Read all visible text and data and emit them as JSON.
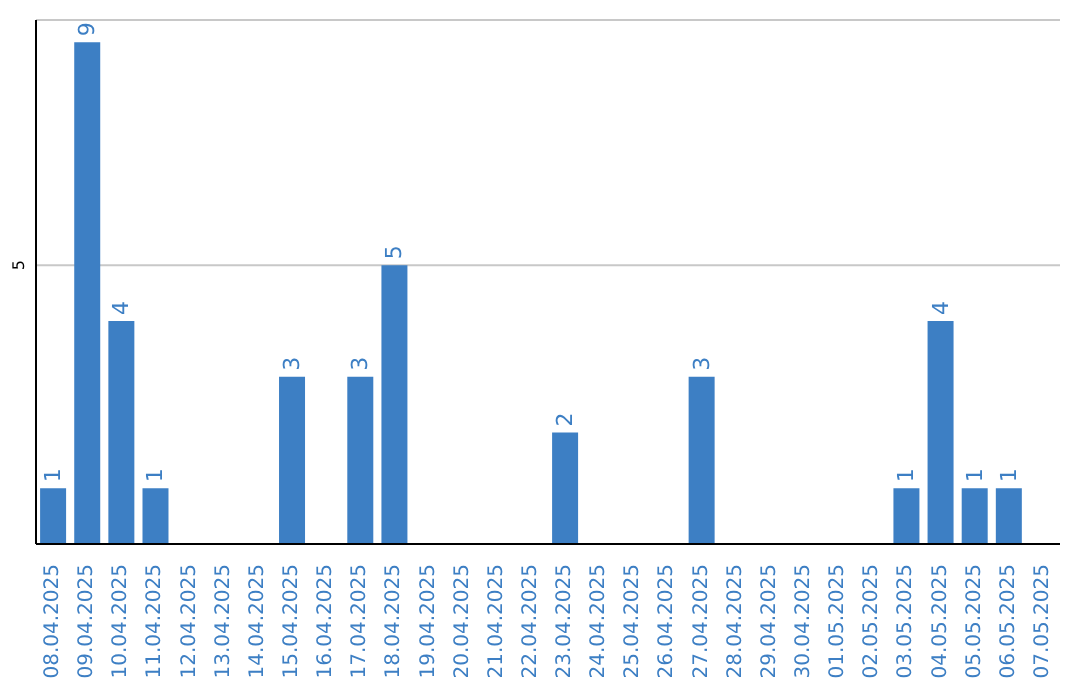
{
  "chart_data": {
    "type": "bar",
    "categories": [
      "08.04.2025",
      "09.04.2025",
      "10.04.2025",
      "11.04.2025",
      "12.04.2025",
      "13.04.2025",
      "14.04.2025",
      "15.04.2025",
      "16.04.2025",
      "17.04.2025",
      "18.04.2025",
      "19.04.2025",
      "20.04.2025",
      "21.04.2025",
      "22.04.2025",
      "23.04.2025",
      "24.04.2025",
      "25.04.2025",
      "26.04.2025",
      "27.04.2025",
      "28.04.2025",
      "29.04.2025",
      "30.04.2025",
      "01.05.2025",
      "02.05.2025",
      "03.05.2025",
      "04.05.2025",
      "05.05.2025",
      "06.05.2025",
      "07.05.2025"
    ],
    "values": [
      1,
      9,
      4,
      1,
      0,
      0,
      0,
      3,
      0,
      3,
      5,
      0,
      0,
      0,
      0,
      2,
      0,
      0,
      0,
      3,
      0,
      0,
      0,
      0,
      0,
      1,
      4,
      1,
      1,
      0
    ],
    "value_labels": [
      "1",
      "9",
      "4",
      "1",
      null,
      null,
      null,
      "3",
      null,
      "3",
      "5",
      null,
      null,
      null,
      null,
      "2",
      null,
      null,
      null,
      "3",
      null,
      null,
      null,
      null,
      null,
      "1",
      "4",
      "1",
      "1",
      null
    ],
    "color": "#3d7fc4",
    "ylim": [
      0,
      9.4
    ],
    "yticks": [
      5
    ],
    "grid": "y"
  }
}
